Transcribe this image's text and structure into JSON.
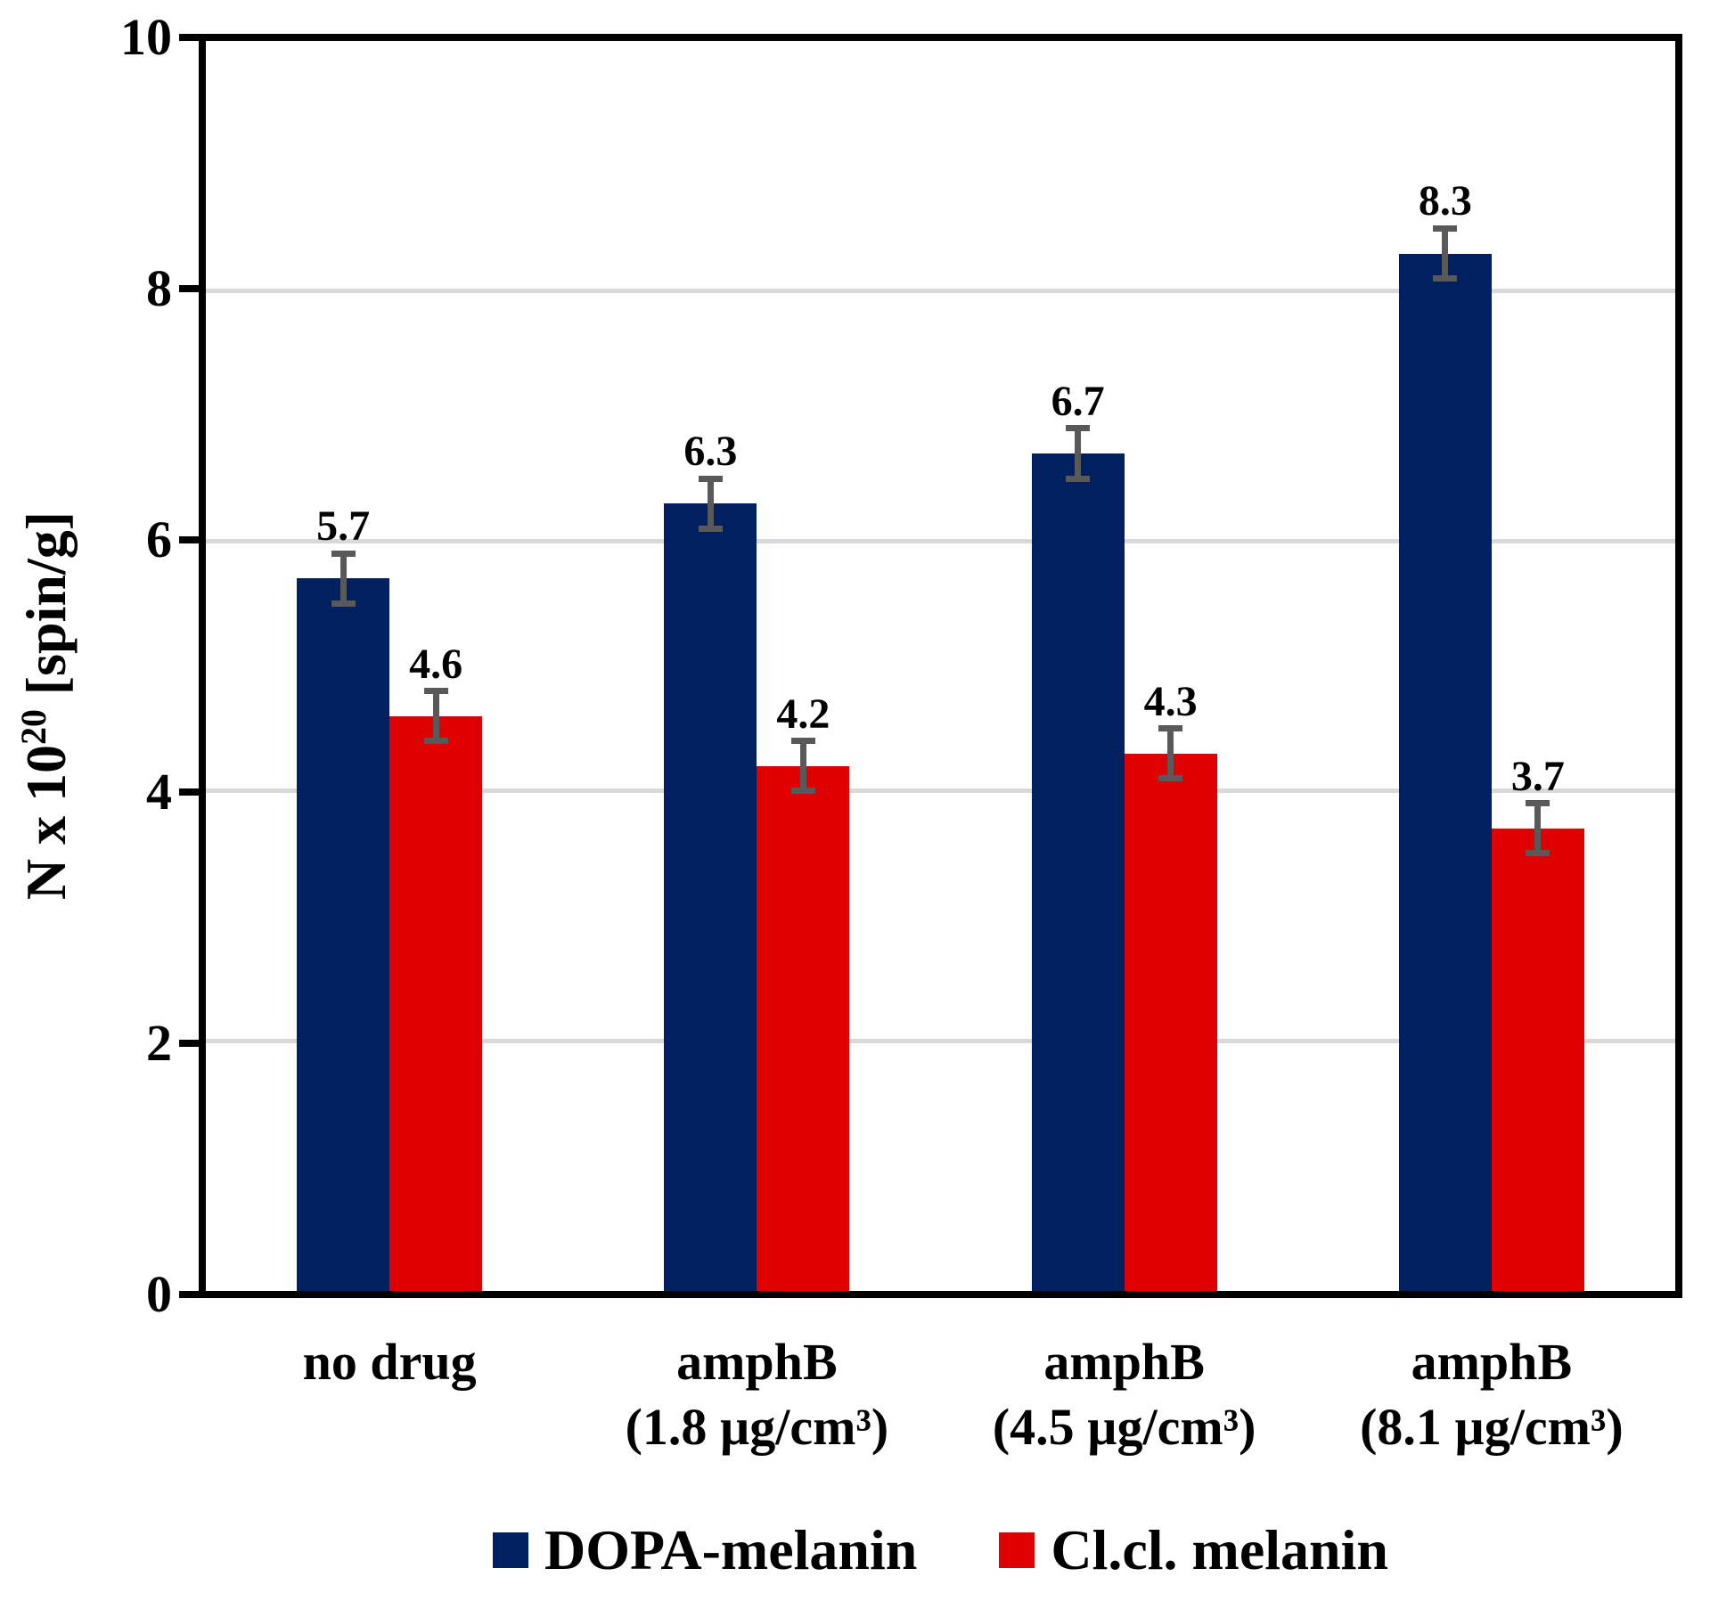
{
  "chart_data": {
    "type": "bar",
    "title": "",
    "y_axis": {
      "label_prefix": "N x 10",
      "label_exponent": "20",
      "label_suffix": " [spin/g]",
      "min": 0,
      "max": 10,
      "ticks": [
        0,
        2,
        4,
        6,
        8,
        10
      ],
      "gridlines": [
        2,
        4,
        6,
        8
      ]
    },
    "categories": [
      {
        "line1": "no drug",
        "line2": ""
      },
      {
        "line1": "amphB",
        "line2": "(1.8 µg/cm³)"
      },
      {
        "line1": "amphB",
        "line2": "(4.5 µg/cm³)"
      },
      {
        "line1": "amphB",
        "line2": "(8.1 µg/cm³)"
      }
    ],
    "series": [
      {
        "name": "DOPA-melanin",
        "color": "#002060",
        "values": [
          5.7,
          6.3,
          6.7,
          8.3
        ],
        "errors": [
          0.2,
          0.2,
          0.2,
          0.2
        ]
      },
      {
        "name": "Cl.cl. melanin",
        "color": "#e00000",
        "values": [
          4.6,
          4.2,
          4.3,
          3.7
        ],
        "errors": [
          0.2,
          0.2,
          0.2,
          0.2
        ]
      }
    ],
    "error_bar_color": "#595959",
    "gridline_color": "#d9d9d9",
    "frame_color": "#000000",
    "legend_position": "bottom",
    "value_label_decimals": 1
  }
}
